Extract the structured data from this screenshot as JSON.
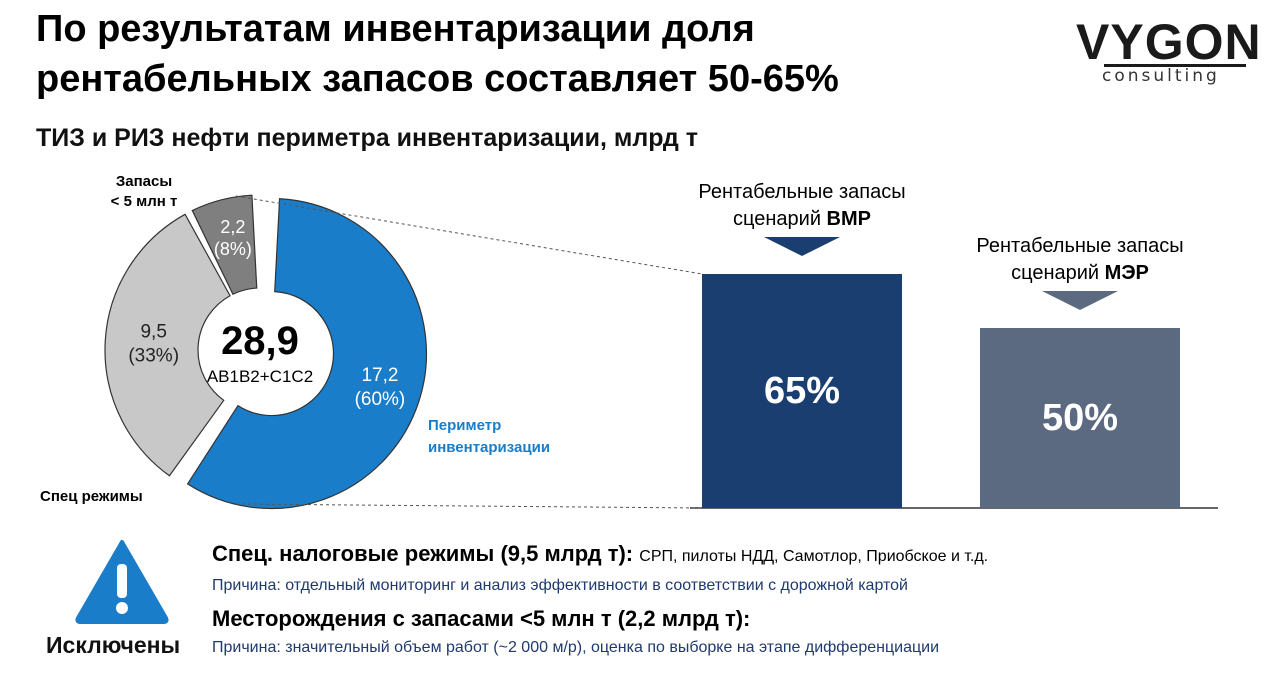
{
  "header": {
    "title_line1": "По результатам инвентаризации доля",
    "title_line2": "рентабельных запасов составляет 50-65%",
    "logo_word": "VYGON",
    "logo_sub": "consulting"
  },
  "colors": {
    "blue": "#1a7dc9",
    "light_gray": "#c8c8c8",
    "dark_gray": "#7f7f7f",
    "navy": "#1a3e6f",
    "slate": "#5b6a80",
    "perimeter_text": "#1a7dc9",
    "reason_text": "#1f3a6e"
  },
  "chart_data": [
    {
      "type": "pie",
      "title": "ТИЗ и РИЗ нефти периметра инвентаризации, млрд т",
      "total": "28,9",
      "total_unit": "AB1B2+C1C2",
      "slices": [
        {
          "key": "perimeter",
          "value": 17.2,
          "value_label": "17,2",
          "share_label": "(60%)",
          "name": "Периметр инвентаризации",
          "color": "#1a7dc9",
          "exploded": true
        },
        {
          "key": "spec",
          "value": 9.5,
          "value_label": "9,5",
          "share_label": "(33%)",
          "name": "Спец режимы",
          "color": "#c8c8c8",
          "exploded": false
        },
        {
          "key": "small",
          "value": 2.2,
          "value_label": "2,2",
          "share_label": "(8%)",
          "name_line1": "Запасы",
          "name_line2": "< 5 млн т",
          "color": "#7f7f7f",
          "exploded": false
        }
      ]
    },
    {
      "type": "bar",
      "categories": [
        "ВМР",
        "МЭР"
      ],
      "values": [
        65,
        50
      ],
      "unit": "%",
      "ylim": [
        0,
        100
      ],
      "bars": [
        {
          "label_line1": "Рентабельные запасы",
          "label_line2_prefix": "сценарий ",
          "label_line2_bold": "ВМР",
          "value_label": "65%",
          "value": 65,
          "color": "#1a3e6f"
        },
        {
          "label_line1": "Рентабельные запасы",
          "label_line2_prefix": "сценарий ",
          "label_line2_bold": "МЭР",
          "value_label": "50%",
          "value": 50,
          "color": "#5b6a80"
        }
      ]
    }
  ],
  "exclusions": {
    "label": "Исключены",
    "items": [
      {
        "heading": "Спец. налоговые режимы (9,5 млрд т):",
        "detail": "СРП, пилоты НДД, Самотлор, Приобское и т.д.",
        "reason": "Причина: отдельный мониторинг и анализ эффективности в соответствии с дорожной картой"
      },
      {
        "heading": "Месторождения с запасами <5 млн т (2,2 млрд т):",
        "detail": "",
        "reason": "Причина: значительный объем работ (~2 000 м/р), оценка по выборке на этапе дифференциации"
      }
    ]
  }
}
